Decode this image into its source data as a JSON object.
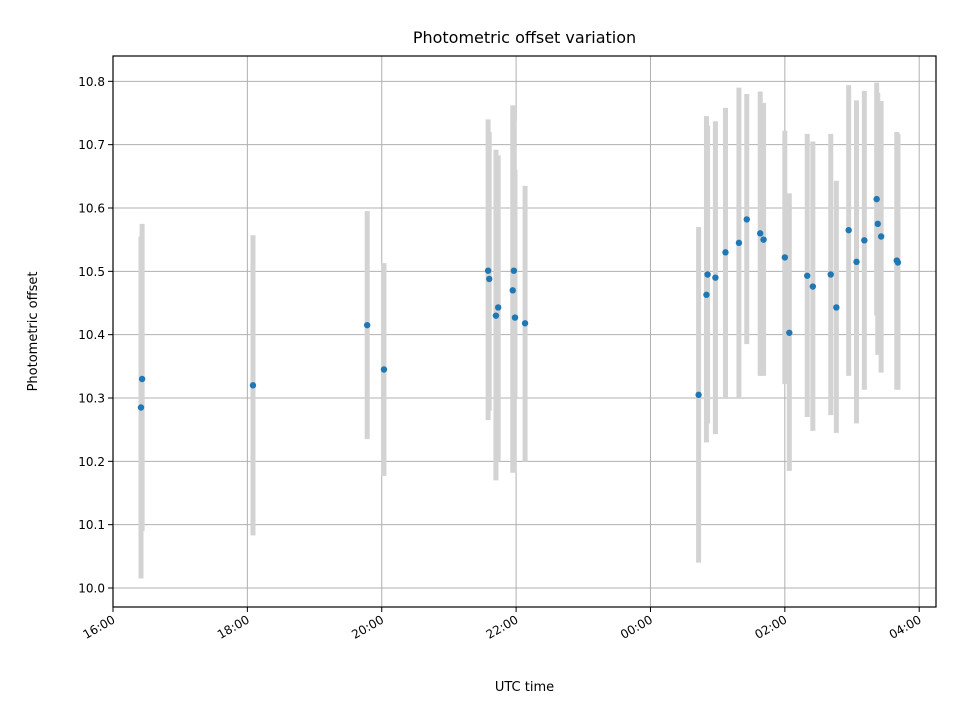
{
  "chart_data": {
    "type": "scatter",
    "title": "Photometric offset variation",
    "xlabel": "UTC time",
    "ylabel": "Photometric offset",
    "x_axis_type": "time",
    "xlim": [
      "16:00",
      "28:15"
    ],
    "ylim": [
      9.97,
      10.84
    ],
    "grid": true,
    "x_ticks": [
      "16:00",
      "18:00",
      "20:00",
      "22:00",
      "00:00",
      "02:00",
      "04:00"
    ],
    "y_ticks": [
      "10.0",
      "10.1",
      "10.2",
      "10.3",
      "10.4",
      "10.5",
      "10.6",
      "10.7",
      "10.8"
    ],
    "colors": {
      "points": "#1f77b4",
      "errorbars": "#d3d3d3",
      "grid": "#b0b0b0"
    },
    "points": [
      {
        "t": "16:25",
        "y": 10.285,
        "lo": 10.015,
        "hi": 10.555
      },
      {
        "t": "16:26",
        "y": 10.33,
        "lo": 10.09,
        "hi": 10.575
      },
      {
        "t": "18:05",
        "y": 10.32,
        "lo": 10.083,
        "hi": 10.557
      },
      {
        "t": "19:47",
        "y": 10.415,
        "lo": 10.235,
        "hi": 10.595
      },
      {
        "t": "20:02",
        "y": 10.345,
        "lo": 10.177,
        "hi": 10.513
      },
      {
        "t": "21:35",
        "y": 10.501,
        "lo": 10.265,
        "hi": 10.74
      },
      {
        "t": "21:36",
        "y": 10.488,
        "lo": 10.28,
        "hi": 10.72
      },
      {
        "t": "21:42",
        "y": 10.43,
        "lo": 10.17,
        "hi": 10.692
      },
      {
        "t": "21:44",
        "y": 10.443,
        "lo": 10.2,
        "hi": 10.683
      },
      {
        "t": "21:57",
        "y": 10.47,
        "lo": 10.182,
        "hi": 10.762
      },
      {
        "t": "21:58",
        "y": 10.501,
        "lo": 10.185,
        "hi": 10.738
      },
      {
        "t": "21:59",
        "y": 10.427,
        "lo": 10.3,
        "hi": 10.66
      },
      {
        "t": "22:08",
        "y": 10.418,
        "lo": 10.2,
        "hi": 10.635
      },
      {
        "t": "00:43",
        "y": 10.305,
        "lo": 10.04,
        "hi": 10.57
      },
      {
        "t": "00:50",
        "y": 10.463,
        "lo": 10.23,
        "hi": 10.745
      },
      {
        "t": "00:51",
        "y": 10.495,
        "lo": 10.26,
        "hi": 10.73
      },
      {
        "t": "00:58",
        "y": 10.49,
        "lo": 10.243,
        "hi": 10.737
      },
      {
        "t": "01:07",
        "y": 10.53,
        "lo": 10.3,
        "hi": 10.758
      },
      {
        "t": "01:19",
        "y": 10.545,
        "lo": 10.3,
        "hi": 10.79
      },
      {
        "t": "01:26",
        "y": 10.582,
        "lo": 10.385,
        "hi": 10.78
      },
      {
        "t": "01:38",
        "y": 10.56,
        "lo": 10.335,
        "hi": 10.784
      },
      {
        "t": "01:41",
        "y": 10.55,
        "lo": 10.335,
        "hi": 10.766
      },
      {
        "t": "02:00",
        "y": 10.522,
        "lo": 10.322,
        "hi": 10.722
      },
      {
        "t": "02:04",
        "y": 10.403,
        "lo": 10.185,
        "hi": 10.623
      },
      {
        "t": "02:20",
        "y": 10.493,
        "lo": 10.27,
        "hi": 10.717
      },
      {
        "t": "02:25",
        "y": 10.476,
        "lo": 10.248,
        "hi": 10.705
      },
      {
        "t": "02:41",
        "y": 10.495,
        "lo": 10.273,
        "hi": 10.717
      },
      {
        "t": "02:46",
        "y": 10.443,
        "lo": 10.245,
        "hi": 10.643
      },
      {
        "t": "02:57",
        "y": 10.565,
        "lo": 10.335,
        "hi": 10.794
      },
      {
        "t": "03:04",
        "y": 10.515,
        "lo": 10.26,
        "hi": 10.77
      },
      {
        "t": "03:11",
        "y": 10.549,
        "lo": 10.313,
        "hi": 10.785
      },
      {
        "t": "03:22",
        "y": 10.614,
        "lo": 10.43,
        "hi": 10.798
      },
      {
        "t": "03:23",
        "y": 10.575,
        "lo": 10.368,
        "hi": 10.782
      },
      {
        "t": "03:26",
        "y": 10.555,
        "lo": 10.34,
        "hi": 10.769
      },
      {
        "t": "03:40",
        "y": 10.517,
        "lo": 10.313,
        "hi": 10.72
      },
      {
        "t": "03:41",
        "y": 10.514,
        "lo": 10.313,
        "hi": 10.717
      }
    ]
  }
}
